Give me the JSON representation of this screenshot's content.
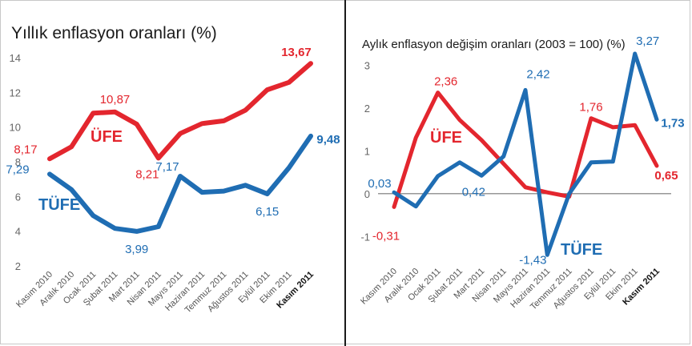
{
  "charts": [
    {
      "title": "Yıllık enflasyon oranları (%)",
      "chart_data": {
        "type": "line",
        "categories": [
          "Kasım 2010",
          "Aralık 2010",
          "Ocak 2011",
          "Şubat 2011",
          "Mart 2011",
          "Nisan 2011",
          "Mayıs 2011",
          "Haziran 2011",
          "Temmuz 2011",
          "Ağustos 2011",
          "Eylül 2011",
          "Ekim 2011",
          "Kasım 2011"
        ],
        "ylim": [
          2,
          14
        ],
        "yticks": [
          "2",
          "4",
          "6",
          "8",
          "10",
          "12",
          "14"
        ],
        "grid": false,
        "series": [
          {
            "name": "ÜFE",
            "color": "#e3262e",
            "values": [
              8.17,
              8.87,
              10.8,
              10.87,
              10.17,
              8.21,
              9.63,
              10.2,
              10.36,
              10.97,
              12.15,
              12.58,
              13.67
            ]
          },
          {
            "name": "TÜFE",
            "color": "#1f6db3",
            "values": [
              7.29,
              6.4,
              4.9,
              4.16,
              3.99,
              4.26,
              7.17,
              6.24,
              6.31,
              6.65,
              6.15,
              7.66,
              9.48
            ]
          }
        ],
        "data_labels": [
          {
            "text": "8,17",
            "series": 0,
            "index": 0,
            "color": "#e3262e",
            "bold": false
          },
          {
            "text": "10,87",
            "series": 0,
            "index": 3,
            "color": "#e3262e",
            "bold": false
          },
          {
            "text": "8,21",
            "series": 0,
            "index": 5,
            "color": "#e3262e",
            "bold": false
          },
          {
            "text": "13,67",
            "series": 0,
            "index": 12,
            "color": "#e3262e",
            "bold": true
          },
          {
            "text": "7,29",
            "series": 1,
            "index": 0,
            "color": "#1f6db3",
            "bold": false
          },
          {
            "text": "3,99",
            "series": 1,
            "index": 4,
            "color": "#1f6db3",
            "bold": false
          },
          {
            "text": "7,17",
            "series": 1,
            "index": 6,
            "color": "#1f6db3",
            "bold": false
          },
          {
            "text": "6,15",
            "series": 1,
            "index": 10,
            "color": "#1f6db3",
            "bold": false
          },
          {
            "text": "9,48",
            "series": 1,
            "index": 12,
            "color": "#1f6db3",
            "bold": true
          }
        ]
      }
    },
    {
      "title": "Aylık enflasyon değişim oranları (2003 = 100) (%)",
      "chart_data": {
        "type": "line",
        "categories": [
          "Kasım 2010",
          "Aralık 2010",
          "Ocak 2011",
          "Şubat 2011",
          "Mart 2011",
          "Nisan 2011",
          "Mayıs 2011",
          "Haziran 2011",
          "Temmuz 2011",
          "Ağustos 2011",
          "Eylül 2011",
          "Ekim 2011",
          "Kasım 2011"
        ],
        "ylim": [
          -1.5,
          3.4
        ],
        "yticks": [
          "-1",
          "0",
          "1",
          "2",
          "3"
        ],
        "zero_line": true,
        "grid": false,
        "series": [
          {
            "name": "ÜFE",
            "color": "#e3262e",
            "values": [
              -0.31,
              1.31,
              2.36,
              1.72,
              1.25,
              0.7,
              0.15,
              0.03,
              -0.07,
              1.76,
              1.55,
              1.6,
              0.65
            ]
          },
          {
            "name": "TÜFE",
            "color": "#1f6db3",
            "values": [
              0.03,
              -0.3,
              0.41,
              0.73,
              0.42,
              0.87,
              2.42,
              -1.43,
              0.0,
              0.73,
              0.75,
              3.27,
              1.73
            ]
          }
        ],
        "data_labels": [
          {
            "text": "-0,31",
            "series": 0,
            "index": 0,
            "color": "#e3262e",
            "bold": false
          },
          {
            "text": "2,36",
            "series": 0,
            "index": 2,
            "color": "#e3262e",
            "bold": false
          },
          {
            "text": "1,76",
            "series": 0,
            "index": 9,
            "color": "#e3262e",
            "bold": false
          },
          {
            "text": "0,65",
            "series": 0,
            "index": 12,
            "color": "#e3262e",
            "bold": true
          },
          {
            "text": "0,03",
            "series": 1,
            "index": 0,
            "color": "#1f6db3",
            "bold": false
          },
          {
            "text": "0,42",
            "series": 1,
            "index": 4,
            "color": "#1f6db3",
            "bold": false
          },
          {
            "text": "2,42",
            "series": 1,
            "index": 6,
            "color": "#1f6db3",
            "bold": false
          },
          {
            "text": "-1,43",
            "series": 1,
            "index": 7,
            "color": "#1f6db3",
            "bold": false
          },
          {
            "text": "3,27",
            "series": 1,
            "index": 11,
            "color": "#1f6db3",
            "bold": false
          },
          {
            "text": "1,73",
            "series": 1,
            "index": 12,
            "color": "#1f6db3",
            "bold": true
          }
        ]
      }
    }
  ]
}
